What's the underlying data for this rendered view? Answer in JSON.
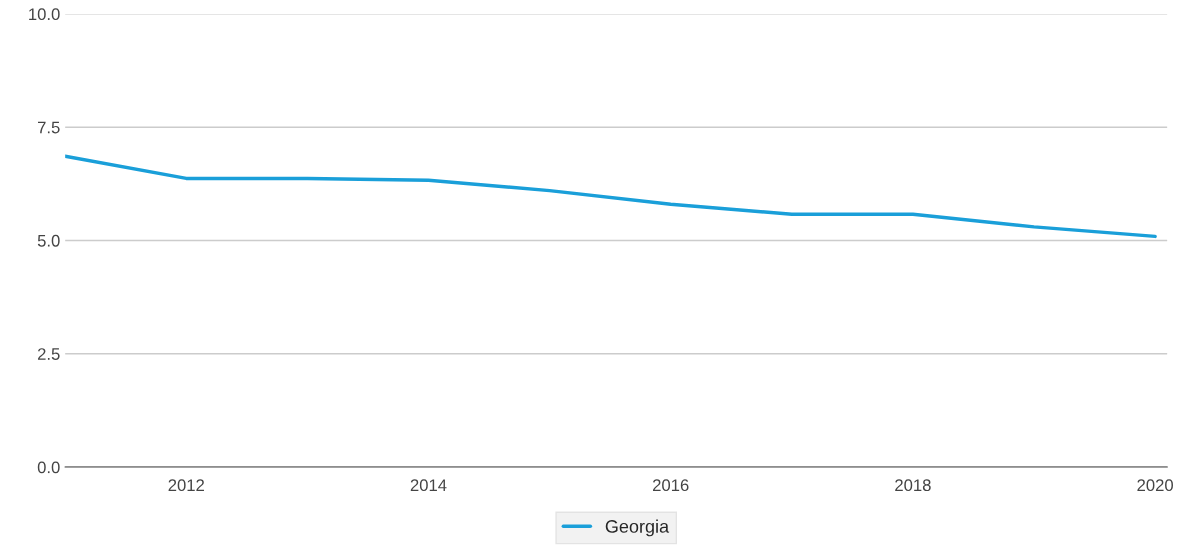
{
  "chart_data": {
    "type": "line",
    "x": [
      2011,
      2012,
      2013,
      2014,
      2015,
      2016,
      2017,
      2018,
      2019,
      2020
    ],
    "series": [
      {
        "name": "Georgia",
        "color": "#1a9fd9",
        "values": [
          6.86,
          6.37,
          6.37,
          6.33,
          6.1,
          5.8,
          5.58,
          5.58,
          5.3,
          5.09
        ]
      }
    ],
    "xlim": [
      2011,
      2020.1
    ],
    "xticks": [
      2012,
      2014,
      2016,
      2018,
      2020
    ],
    "ylim": [
      0,
      10
    ],
    "yticks": [
      {
        "value": 0,
        "label": "0.0"
      },
      {
        "value": 2.5,
        "label": "2.5"
      },
      {
        "value": 5,
        "label": "5.0"
      },
      {
        "value": 7.5,
        "label": "7.5"
      },
      {
        "value": 10,
        "label": "10.0"
      }
    ],
    "grid": "y",
    "legend": "bottom",
    "marker": "none",
    "line_style": "solid"
  }
}
